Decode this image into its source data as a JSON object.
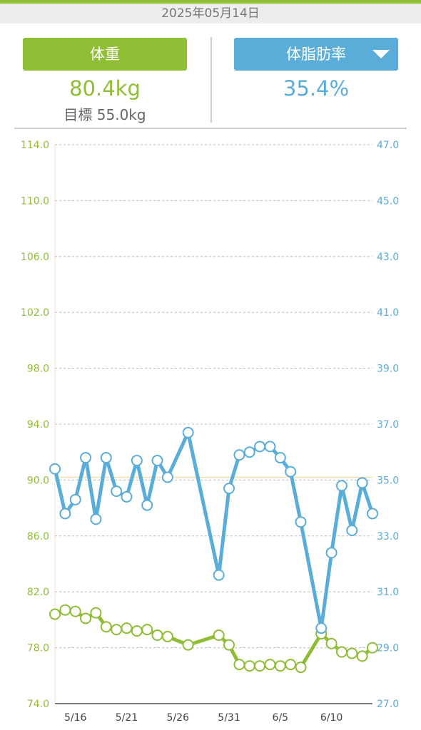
{
  "header": {
    "date": "2025年05月14日"
  },
  "weight": {
    "button_label": "体重",
    "value": "80.4kg",
    "goal": "目標 55.0kg"
  },
  "bodyfat": {
    "button_label": "体脂肪率",
    "value": "35.4%"
  },
  "colors": {
    "weight": "#8fbd34",
    "bodyfat": "#5aadd8",
    "grid": "#bbbbbb",
    "target": "#f3dcb5"
  },
  "chart_data": {
    "type": "line",
    "x_start": "5/14",
    "x_ticks": [
      {
        "day": 2,
        "label": "5/16"
      },
      {
        "day": 7,
        "label": "5/21"
      },
      {
        "day": 12,
        "label": "5/26"
      },
      {
        "day": 17,
        "label": "5/31"
      },
      {
        "day": 22,
        "label": "6/5"
      },
      {
        "day": 27,
        "label": "6/10"
      }
    ],
    "x_range": [
      0,
      31
    ],
    "y_left": {
      "range": [
        74,
        114
      ],
      "ticks": [
        "74.0",
        "78.0",
        "82.0",
        "86.0",
        "90.0",
        "94.0",
        "98.0",
        "102.0",
        "106.0",
        "110.0",
        "114.0"
      ]
    },
    "y_right": {
      "range": [
        27,
        47
      ],
      "ticks": [
        "27.0",
        "29.0",
        "31.0",
        "33.0",
        "35.0",
        "37.0",
        "39.0",
        "41.0",
        "43.0",
        "45.0",
        "47.0"
      ]
    },
    "bodyfat_target": 35.1,
    "series": [
      {
        "axis": "left",
        "points": [
          [
            0,
            80.4
          ],
          [
            1,
            80.7
          ],
          [
            2,
            80.6
          ],
          [
            3,
            80.1
          ],
          [
            4,
            80.5
          ],
          [
            5,
            79.5
          ],
          [
            6,
            79.3
          ],
          [
            7,
            79.4
          ],
          [
            8,
            79.2
          ],
          [
            9,
            79.3
          ],
          [
            10,
            78.9
          ],
          [
            11,
            78.8
          ],
          [
            13,
            78.2
          ],
          [
            16,
            78.9
          ],
          [
            17,
            78.2
          ],
          [
            18,
            76.8
          ],
          [
            19,
            76.7
          ],
          [
            20,
            76.7
          ],
          [
            21,
            76.8
          ],
          [
            22,
            76.7
          ],
          [
            23,
            76.8
          ],
          [
            24,
            76.6
          ],
          [
            26,
            79.0
          ],
          [
            27,
            78.3
          ],
          [
            28,
            77.7
          ],
          [
            29,
            77.6
          ],
          [
            30,
            77.4
          ],
          [
            31,
            78.0
          ]
        ]
      },
      {
        "axis": "right",
        "points": [
          [
            0,
            35.4
          ],
          [
            1,
            33.8
          ],
          [
            2,
            34.3
          ],
          [
            3,
            35.8
          ],
          [
            4,
            33.6
          ],
          [
            5,
            35.8
          ],
          [
            6,
            34.6
          ],
          [
            7,
            34.4
          ],
          [
            8,
            35.7
          ],
          [
            9,
            34.1
          ],
          [
            10,
            35.7
          ],
          [
            11,
            35.1
          ],
          [
            13,
            36.7
          ],
          [
            16,
            31.6
          ],
          [
            17,
            34.7
          ],
          [
            18,
            35.9
          ],
          [
            19,
            36.0
          ],
          [
            20,
            36.2
          ],
          [
            21,
            36.2
          ],
          [
            22,
            35.8
          ],
          [
            23,
            35.3
          ],
          [
            24,
            33.5
          ],
          [
            26,
            29.7
          ],
          [
            27,
            32.4
          ],
          [
            28,
            34.8
          ],
          [
            29,
            33.2
          ],
          [
            30,
            34.9
          ],
          [
            31,
            33.8
          ]
        ]
      }
    ]
  }
}
